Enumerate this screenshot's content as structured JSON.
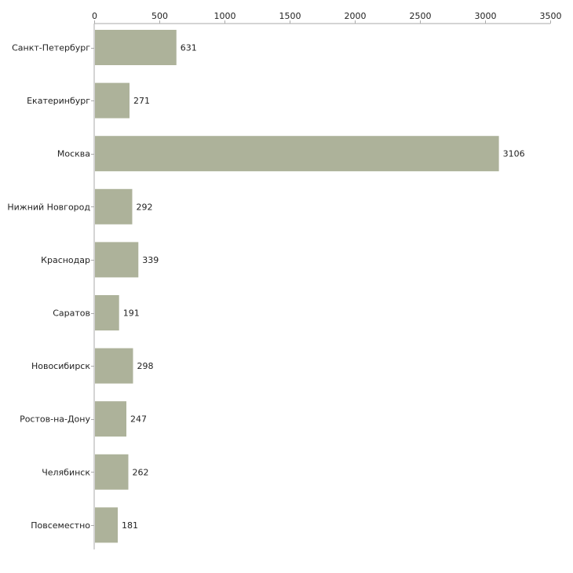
{
  "chart_data": {
    "type": "bar",
    "orientation": "horizontal",
    "title": "",
    "xlabel": "",
    "ylabel": "",
    "xlim": [
      0,
      3500
    ],
    "ticks": [
      0,
      500,
      1000,
      1500,
      2000,
      2500,
      3000,
      3500
    ],
    "tick_labels": [
      "0",
      "500",
      "1000",
      "1500",
      "2000",
      "2500",
      "3000",
      "3500"
    ],
    "axis_position": "top",
    "grid": false,
    "categories": [
      "Санкт-Петербург",
      "Екатеринбург",
      "Москва",
      "Нижний Новгород",
      "Краснодар",
      "Саратов",
      "Новосибирск",
      "Ростов-на-Дону",
      "Челябинск",
      "Повсеместно"
    ],
    "values": [
      631,
      271,
      3106,
      292,
      339,
      191,
      298,
      247,
      262,
      181
    ],
    "value_labels": [
      "631",
      "271",
      "3106",
      "292",
      "339",
      "191",
      "298",
      "247",
      "262",
      "181"
    ],
    "colors": {
      "bar": "#adb29a",
      "axis": "#aaaaaa",
      "text": "#222222"
    }
  }
}
